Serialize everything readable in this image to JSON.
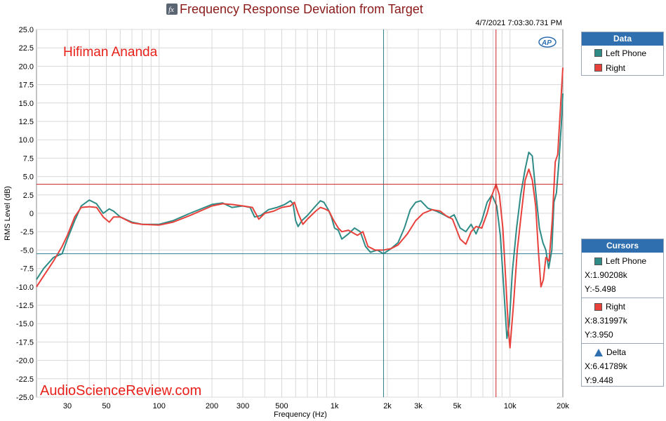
{
  "title": "Frequency Response Deviation from Target",
  "timestamp": "4/7/2021 7:03:30.731 PM",
  "annotation": "Hifiman Ananda",
  "watermark": "AudioScienceReview.com",
  "logo": "AP",
  "colors": {
    "left": "#2e8b86",
    "right": "#e8413c",
    "title": "#8a1a1a",
    "annotation": "#e8201a",
    "header": "#2f6fb0",
    "cursor_left": "#2e7f8f",
    "cursor_right": "#cc2222"
  },
  "legend": {
    "title": "Data",
    "items": [
      {
        "label": "Left Phone",
        "color": "#2e8b86"
      },
      {
        "label": "Right",
        "color": "#e8413c"
      }
    ]
  },
  "cursors": {
    "title": "Cursors",
    "left": {
      "label": "Left Phone",
      "x": "X:1.90208k",
      "y": "Y:-5.498"
    },
    "right": {
      "label": "Right",
      "x": "X:8.31997k",
      "y": "Y:3.950"
    },
    "delta": {
      "label": "Delta",
      "x": "X:6.41789k",
      "y": "Y:9.448"
    }
  },
  "chart_data": {
    "type": "line",
    "xlabel": "Frequency (Hz)",
    "ylabel": "RMS Level (dB)",
    "x_scale": "log",
    "xlim": [
      20,
      20000
    ],
    "ylim": [
      -25,
      25
    ],
    "grid": true,
    "legend_position": "right",
    "x_ticks": [
      {
        "value": 30,
        "label": "30"
      },
      {
        "value": 50,
        "label": "50"
      },
      {
        "value": 100,
        "label": "100"
      },
      {
        "value": 200,
        "label": "200"
      },
      {
        "value": 300,
        "label": "300"
      },
      {
        "value": 500,
        "label": "500"
      },
      {
        "value": 1000,
        "label": "1k"
      },
      {
        "value": 2000,
        "label": "2k"
      },
      {
        "value": 3000,
        "label": "3k"
      },
      {
        "value": 5000,
        "label": "5k"
      },
      {
        "value": 10000,
        "label": "10k"
      },
      {
        "value": 20000,
        "label": "20k"
      }
    ],
    "y_ticks": [
      "25.0",
      "22.5",
      "20.0",
      "17.5",
      "15.0",
      "12.5",
      "10.0",
      "7.5",
      "5.0",
      "2.5",
      "0",
      "-2.5",
      "-5.0",
      "-7.5",
      "-10.0",
      "-12.5",
      "-15.0",
      "-17.5",
      "-20.0",
      "-22.5",
      "-25.0"
    ],
    "cursors": {
      "left_x": 1902.08,
      "left_y": -5.498,
      "right_x": 8319.97,
      "right_y": 3.95
    },
    "series": [
      {
        "name": "Left Phone",
        "color": "#2e8b86",
        "points": [
          [
            20,
            -9.0
          ],
          [
            22,
            -7.5
          ],
          [
            25,
            -6.0
          ],
          [
            28,
            -5.5
          ],
          [
            30,
            -3.5
          ],
          [
            33,
            -1.0
          ],
          [
            36,
            1.0
          ],
          [
            40,
            1.8
          ],
          [
            44,
            1.3
          ],
          [
            48,
            0.0
          ],
          [
            52,
            0.6
          ],
          [
            55,
            0.3
          ],
          [
            60,
            -0.5
          ],
          [
            70,
            -1.2
          ],
          [
            80,
            -1.5
          ],
          [
            100,
            -1.5
          ],
          [
            120,
            -1.0
          ],
          [
            150,
            0.0
          ],
          [
            200,
            1.2
          ],
          [
            230,
            1.4
          ],
          [
            260,
            0.8
          ],
          [
            300,
            1.0
          ],
          [
            330,
            0.8
          ],
          [
            350,
            -0.5
          ],
          [
            380,
            -0.3
          ],
          [
            420,
            0.5
          ],
          [
            470,
            0.8
          ],
          [
            520,
            1.2
          ],
          [
            560,
            1.7
          ],
          [
            580,
            1.3
          ],
          [
            600,
            -1.0
          ],
          [
            620,
            -1.8
          ],
          [
            650,
            -1.0
          ],
          [
            700,
            -0.3
          ],
          [
            780,
            1.0
          ],
          [
            830,
            1.7
          ],
          [
            870,
            1.5
          ],
          [
            920,
            0.5
          ],
          [
            960,
            -0.5
          ],
          [
            1000,
            -2.0
          ],
          [
            1050,
            -2.3
          ],
          [
            1100,
            -3.5
          ],
          [
            1200,
            -2.8
          ],
          [
            1300,
            -2.0
          ],
          [
            1400,
            -2.5
          ],
          [
            1500,
            -4.5
          ],
          [
            1600,
            -5.3
          ],
          [
            1750,
            -5.0
          ],
          [
            1900,
            -5.5
          ],
          [
            2100,
            -4.8
          ],
          [
            2300,
            -4.0
          ],
          [
            2500,
            -2.0
          ],
          [
            2700,
            0.5
          ],
          [
            2900,
            1.5
          ],
          [
            3100,
            1.7
          ],
          [
            3400,
            0.7
          ],
          [
            3800,
            0.3
          ],
          [
            4200,
            -0.2
          ],
          [
            4500,
            -0.6
          ],
          [
            4800,
            -0.2
          ],
          [
            5200,
            -2.0
          ],
          [
            5600,
            -2.5
          ],
          [
            6000,
            -1.5
          ],
          [
            6400,
            -2.8
          ],
          [
            6900,
            -1.0
          ],
          [
            7400,
            1.5
          ],
          [
            7900,
            2.5
          ],
          [
            8400,
            1.0
          ],
          [
            8800,
            -3.0
          ],
          [
            9200,
            -10.0
          ],
          [
            9600,
            -17.0
          ],
          [
            9900,
            -15.0
          ],
          [
            10300,
            -8.0
          ],
          [
            10900,
            -2.0
          ],
          [
            11500,
            2.5
          ],
          [
            12200,
            6.0
          ],
          [
            12800,
            8.3
          ],
          [
            13400,
            7.8
          ],
          [
            14000,
            3.0
          ],
          [
            14700,
            -2.0
          ],
          [
            15400,
            -4.0
          ],
          [
            16000,
            -5.0
          ],
          [
            16600,
            -7.5
          ],
          [
            17300,
            -5.0
          ],
          [
            17800,
            1.5
          ],
          [
            18400,
            2.8
          ],
          [
            19000,
            7.0
          ],
          [
            19600,
            12.0
          ],
          [
            20000,
            16.3
          ]
        ]
      },
      {
        "name": "Right",
        "color": "#e8413c",
        "points": [
          [
            20,
            -10.0
          ],
          [
            22,
            -8.5
          ],
          [
            25,
            -6.5
          ],
          [
            28,
            -4.5
          ],
          [
            30,
            -3.0
          ],
          [
            33,
            -0.5
          ],
          [
            36,
            0.8
          ],
          [
            40,
            0.9
          ],
          [
            44,
            0.8
          ],
          [
            48,
            -0.5
          ],
          [
            52,
            -1.2
          ],
          [
            55,
            -0.5
          ],
          [
            60,
            -0.5
          ],
          [
            70,
            -1.3
          ],
          [
            80,
            -1.5
          ],
          [
            100,
            -1.6
          ],
          [
            120,
            -1.2
          ],
          [
            150,
            -0.3
          ],
          [
            200,
            1.0
          ],
          [
            230,
            1.3
          ],
          [
            260,
            1.2
          ],
          [
            300,
            1.0
          ],
          [
            340,
            0.8
          ],
          [
            370,
            -0.8
          ],
          [
            400,
            0.0
          ],
          [
            450,
            0.3
          ],
          [
            500,
            0.8
          ],
          [
            560,
            1.0
          ],
          [
            590,
            1.5
          ],
          [
            620,
            0.0
          ],
          [
            660,
            -1.5
          ],
          [
            700,
            -0.8
          ],
          [
            780,
            0.3
          ],
          [
            830,
            0.8
          ],
          [
            880,
            0.6
          ],
          [
            930,
            0.3
          ],
          [
            980,
            -0.8
          ],
          [
            1050,
            -2.0
          ],
          [
            1100,
            -2.5
          ],
          [
            1200,
            -2.3
          ],
          [
            1350,
            -3.0
          ],
          [
            1450,
            -2.5
          ],
          [
            1550,
            -4.5
          ],
          [
            1700,
            -5.0
          ],
          [
            1900,
            -5.0
          ],
          [
            2100,
            -4.8
          ],
          [
            2300,
            -4.3
          ],
          [
            2600,
            -2.8
          ],
          [
            2900,
            -1.0
          ],
          [
            3200,
            0.0
          ],
          [
            3600,
            0.5
          ],
          [
            4000,
            0.3
          ],
          [
            4300,
            -0.3
          ],
          [
            4700,
            -0.8
          ],
          [
            5200,
            -3.5
          ],
          [
            5600,
            -4.2
          ],
          [
            6000,
            -2.5
          ],
          [
            6400,
            -1.8
          ],
          [
            6900,
            -2.0
          ],
          [
            7400,
            0.0
          ],
          [
            7900,
            2.5
          ],
          [
            8320,
            3.95
          ],
          [
            8700,
            2.5
          ],
          [
            9100,
            -2.0
          ],
          [
            9500,
            -10.0
          ],
          [
            9800,
            -16.0
          ],
          [
            10000,
            -18.3
          ],
          [
            10500,
            -12.0
          ],
          [
            11000,
            -5.0
          ],
          [
            11600,
            0.0
          ],
          [
            12200,
            4.5
          ],
          [
            12800,
            6.0
          ],
          [
            13400,
            4.5
          ],
          [
            14000,
            1.0
          ],
          [
            14500,
            -5.0
          ],
          [
            15000,
            -10.0
          ],
          [
            15500,
            -9.0
          ],
          [
            16000,
            -6.0
          ],
          [
            16700,
            -6.5
          ],
          [
            17400,
            -1.0
          ],
          [
            18100,
            7.0
          ],
          [
            18700,
            8.0
          ],
          [
            19300,
            13.5
          ],
          [
            20000,
            19.8
          ]
        ]
      }
    ]
  }
}
